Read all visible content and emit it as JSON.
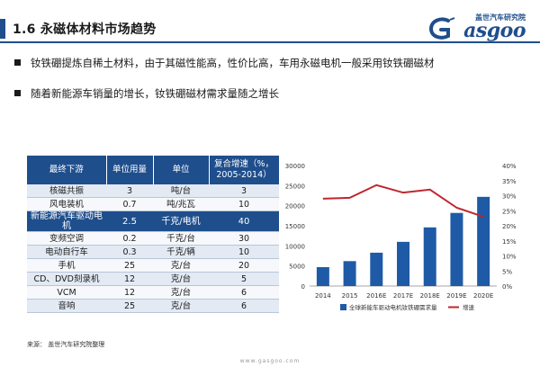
{
  "slide": {
    "title": "1.6  永磁体材料市场趋势",
    "logo_top": "盖世汽车研究院",
    "logo_word": "asgoo"
  },
  "bullets": [
    "钕铁硼提炼自稀土材料，由于其磁性能高，性价比高，车用永磁电机一般采用钕铁硼磁材",
    "随着新能源车销量的增长，钕铁硼磁材需求量随之增长"
  ],
  "table": {
    "headers": [
      "最终下游",
      "单位用量",
      "单位",
      "复合增速（%，2005-2014）"
    ],
    "rows": [
      [
        "核磁共振",
        "3",
        "吨/台",
        "3"
      ],
      [
        "风电装机",
        "0.7",
        "吨/兆瓦",
        "10"
      ],
      [
        "新能源汽车驱动电机",
        "2.5",
        "千克/电机",
        "40"
      ],
      [
        "变频空调",
        "0.2",
        "千克/台",
        "30"
      ],
      [
        "电动自行车",
        "0.3",
        "千克/辆",
        "10"
      ],
      [
        "手机",
        "25",
        "克/台",
        "20"
      ],
      [
        "CD、DVD刻录机",
        "12",
        "克/台",
        "5"
      ],
      [
        "VCM",
        "12",
        "克/台",
        "6"
      ],
      [
        "音响",
        "25",
        "克/台",
        "6"
      ]
    ],
    "highlight_row": 2
  },
  "chart_data": {
    "type": "bar",
    "categories": [
      "2014",
      "2015",
      "2016E",
      "2017E",
      "2018E",
      "2019E",
      "2020E"
    ],
    "series": [
      {
        "name": "全球新能车驱动电机钕铁硼需求量",
        "kind": "bar",
        "axis": "left",
        "values": [
          4700,
          6200,
          8300,
          11000,
          14600,
          18200,
          22200
        ],
        "color": "#1f5aa6"
      },
      {
        "name": "增速",
        "kind": "line",
        "axis": "right",
        "values": [
          29,
          29.3,
          33.5,
          31,
          32,
          26,
          23
        ],
        "color": "#c0262e"
      }
    ],
    "ylim_left": [
      0,
      30000
    ],
    "yticks_left": [
      "0",
      "5000",
      "10000",
      "15000",
      "20000",
      "25000",
      "30000"
    ],
    "ylim_right": [
      0,
      40
    ],
    "yticks_right": [
      "0%",
      "5%",
      "10%",
      "15%",
      "20%",
      "25%",
      "30%",
      "35%",
      "40%"
    ],
    "grid": false,
    "legend": "bottom"
  },
  "source": "来源：  盖世汽车研究院整理",
  "footer_url": "www.gasgoo.com",
  "colors": {
    "brand": "#1f4e8c",
    "bar": "#1f5aa6",
    "line": "#c0262e"
  }
}
